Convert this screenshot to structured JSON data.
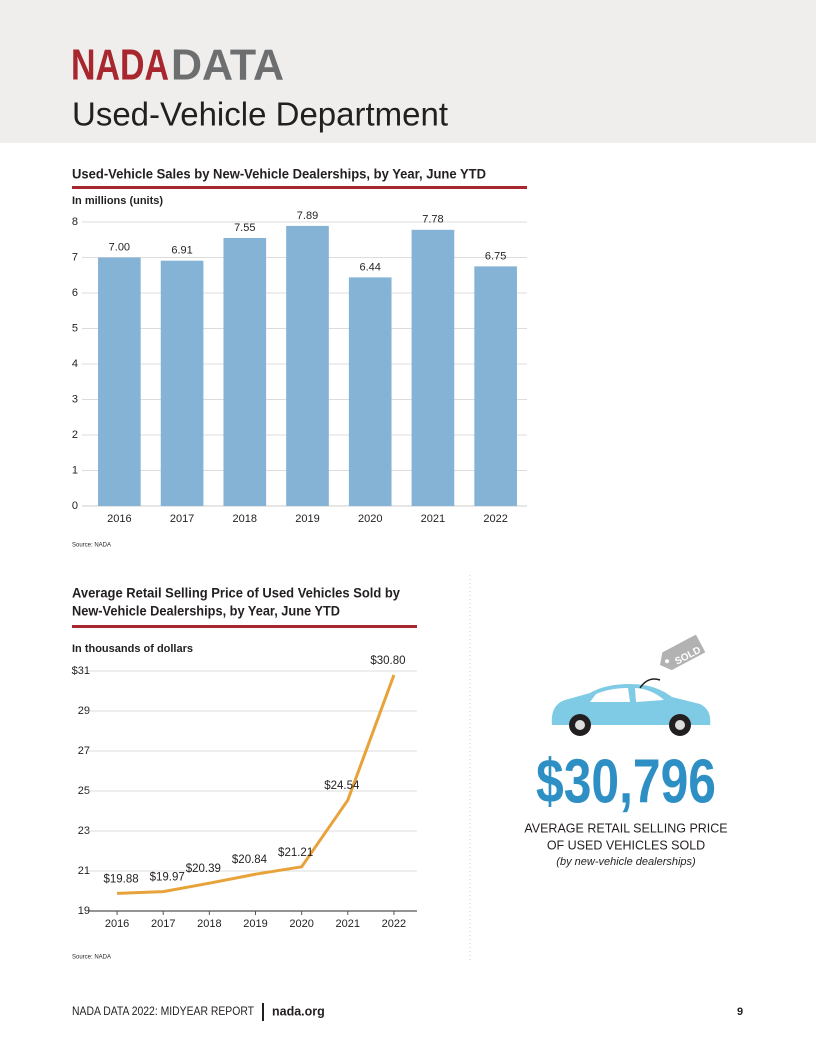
{
  "header": {
    "brand_1": "NADA",
    "brand_2": "DATA",
    "title": "Used-Vehicle Department"
  },
  "chart_data": [
    {
      "type": "bar",
      "title": "Used-Vehicle Sales by New-Vehicle Dealerships, by Year, June YTD",
      "subtitle": "In millions (units)",
      "source": "Source: NADA",
      "categories": [
        "2016",
        "2017",
        "2018",
        "2019",
        "2020",
        "2021",
        "2022"
      ],
      "values": [
        7.0,
        6.91,
        7.55,
        7.89,
        6.44,
        7.78,
        6.75
      ],
      "value_labels": [
        "7.00",
        "6.91",
        "7.55",
        "7.89",
        "6.44",
        "7.78",
        "6.75"
      ],
      "color": "#85b3d6",
      "ylim": [
        0,
        8
      ],
      "yticks": [
        0,
        1,
        2,
        3,
        4,
        5,
        6,
        7,
        8
      ],
      "grid": true
    },
    {
      "type": "line",
      "title": [
        "Average Retail Selling Price of Used Vehicles Sold by",
        "New-Vehicle Dealerships, by Year, June YTD"
      ],
      "subtitle": "In thousands of dollars",
      "source": "Source: NADA",
      "categories": [
        "2016",
        "2017",
        "2018",
        "2019",
        "2020",
        "2021",
        "2022"
      ],
      "values": [
        19.88,
        19.97,
        20.39,
        20.84,
        21.21,
        24.54,
        30.8
      ],
      "value_labels": [
        "$19.88",
        "$19.97",
        "$20.39",
        "$20.84",
        "$21.21",
        "$24.54",
        "$30.80"
      ],
      "color": "#e8a23a",
      "ylim": [
        19,
        31
      ],
      "yticks": [
        19,
        21,
        23,
        25,
        27,
        29,
        {
          "value": 31,
          "label": "$31"
        }
      ],
      "grid": true
    }
  ],
  "callout": {
    "tag": "SOLD",
    "value": "$30,796",
    "label_1": "AVERAGE RETAIL SELLING PRICE",
    "label_2": "OF USED VEHICLES SOLD",
    "note": "(by new-vehicle dealerships)"
  },
  "footer": {
    "report": "NADA DATA 2022: MIDYEAR REPORT",
    "site": "nada.org",
    "page": "9"
  }
}
